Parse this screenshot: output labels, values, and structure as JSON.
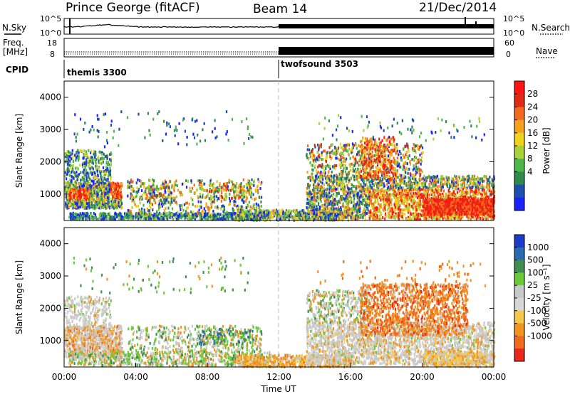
{
  "header": {
    "station": "Prince George (fitACF)",
    "beam": "Beam 14",
    "date": "21/Dec/2014"
  },
  "noise_panel": {
    "left_label": "N.Sky",
    "left_tick_top": "10^5",
    "left_tick_bottom": "10^0",
    "right_label": "N.Search",
    "right_tick_top": "10^5",
    "right_tick_bottom": "10^0"
  },
  "freq_panel": {
    "left_label_line1": "Freq.",
    "left_label_line2": "[MHz]",
    "left_tick_top": "18",
    "left_tick_bottom": "8",
    "right_label": "Nave",
    "right_tick_top": "60",
    "right_tick_bottom": "0"
  },
  "cpid_panel": {
    "label": "CPID",
    "mode1": "themis 3300",
    "mode2": "twofsound 3503"
  },
  "colors": {
    "power": [
      "#1a22ff",
      "#1d4fb0",
      "#2f8a4e",
      "#4cb84a",
      "#a8d13a",
      "#f0d21c",
      "#f5a21e",
      "#f46a1c",
      "#e02a12",
      "#ff1414"
    ],
    "velocity": [
      "#1a3cc8",
      "#2a6ab0",
      "#3f8f4f",
      "#6acb3a",
      "#c8c8c8",
      "#d7d7d7",
      "#f3c74a",
      "#f2951d",
      "#ef6a1a",
      "#e8281a"
    ]
  },
  "chart_data": [
    {
      "type": "heatmap",
      "name": "power",
      "xlabel": "",
      "ylabel": "Slant Range [km]",
      "x_ticks": [
        "00:00",
        "04:00",
        "08:00",
        "12:00",
        "16:00",
        "20:00",
        "00:00"
      ],
      "xlim_hours": [
        0,
        24
      ],
      "y_ticks": [
        "1000",
        "2000",
        "3000",
        "4000"
      ],
      "ylim": [
        180,
        4500
      ],
      "colorbar_label": "Power [dB]",
      "colorbar_ticks": [
        "4",
        "8",
        "12",
        "16",
        "20",
        "24",
        "28"
      ],
      "clim": [
        0,
        30
      ]
    },
    {
      "type": "heatmap",
      "name": "velocity",
      "xlabel": "Time UT",
      "ylabel": "Slant Range [km]",
      "x_ticks": [
        "00:00",
        "04:00",
        "08:00",
        "12:00",
        "16:00",
        "20:00",
        "00:00"
      ],
      "xlim_hours": [
        0,
        24
      ],
      "y_ticks": [
        "1000",
        "2000",
        "3000",
        "4000"
      ],
      "ylim": [
        180,
        4500
      ],
      "colorbar_label": "Velocity [m s⁻¹]",
      "colorbar_ticks": [
        "1000",
        "500",
        "100",
        "25",
        "-25",
        "-100",
        "-500",
        "-1000"
      ]
    }
  ]
}
